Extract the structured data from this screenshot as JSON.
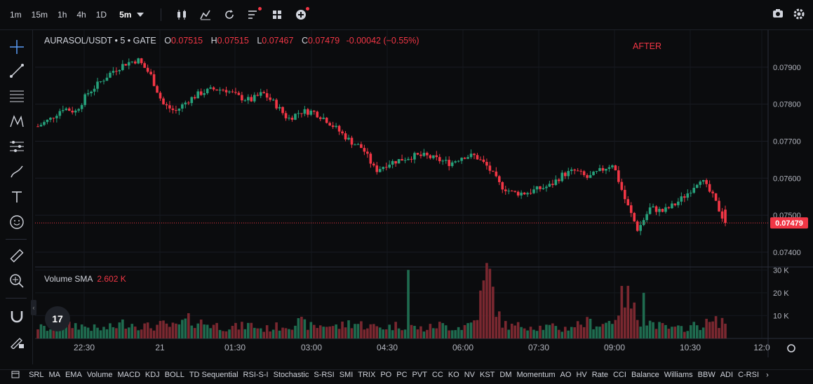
{
  "toolbar": {
    "timeframes": [
      "1m",
      "15m",
      "1h",
      "4h",
      "1D",
      "5m"
    ],
    "active_timeframe": "5m"
  },
  "legend": {
    "symbol": "AURASOL/USDT • 5 • GATE",
    "open_label": "O",
    "open": "0.07515",
    "high_label": "H",
    "high": "0.07515",
    "low_label": "L",
    "low": "0.07467",
    "close_label": "C",
    "close": "0.07479",
    "change": "-0.00042 (−0.55%)"
  },
  "annotation": "AFTER",
  "volume_legend": {
    "label": "Volume SMA",
    "value": "2.602 K"
  },
  "logo_text": "17",
  "bottom_indicators": [
    "SRL",
    "MA",
    "EMA",
    "Volume",
    "MACD",
    "KDJ",
    "BOLL",
    "TD Sequential",
    "RSI-S-I",
    "Stochastic",
    "S-RSI",
    "SMI",
    "TRIX",
    "PO",
    "PC",
    "PVT",
    "CC",
    "KO",
    "NV",
    "KST",
    "DM",
    "Momentum",
    "AO",
    "HV",
    "Rate",
    "CCI",
    "Balance",
    "Williams",
    "BBW",
    "ADI",
    "C-RSI"
  ],
  "colors": {
    "up": "#26a17b",
    "down": "#f23645",
    "up_vol": "#1f6b4f",
    "down_vol": "#7a2830",
    "last_price": "#f23645"
  },
  "chart_data": {
    "type": "candlestick",
    "x_ticks": [
      "22:30",
      "21",
      "01:30",
      "03:00",
      "04:30",
      "06:00",
      "07:30",
      "09:00",
      "10:30",
      "12:0"
    ],
    "price_ticks": [
      "0.07900",
      "0.07800",
      "0.07700",
      "0.07600",
      "0.07500",
      "0.07400"
    ],
    "price_range": [
      0.0736,
      0.08
    ],
    "volume_ticks": [
      "30 K",
      "20 K",
      "10 K"
    ],
    "volume_range": [
      0,
      31000
    ],
    "last_price": "0.07479",
    "close_path": [
      0.0774,
      0.0776,
      0.0779,
      0.0778,
      0.0783,
      0.0786,
      0.0789,
      0.0791,
      0.0792,
      0.0788,
      0.078,
      0.0778,
      0.0781,
      0.0783,
      0.0784,
      0.0784,
      0.0782,
      0.0781,
      0.0783,
      0.078,
      0.0776,
      0.0778,
      0.0778,
      0.0776,
      0.0773,
      0.077,
      0.0768,
      0.0762,
      0.0764,
      0.0765,
      0.0766,
      0.0766,
      0.0765,
      0.0764,
      0.0766,
      0.0766,
      0.0763,
      0.0758,
      0.0756,
      0.0756,
      0.0757,
      0.0758,
      0.0761,
      0.0762,
      0.076,
      0.0762,
      0.0764,
      0.0754,
      0.0746,
      0.0752,
      0.0751,
      0.0753,
      0.0756,
      0.076,
      0.0755,
      0.07479
    ],
    "volume_shape": [
      5,
      4,
      5,
      6,
      5,
      4,
      5,
      7,
      6,
      5,
      6,
      5,
      8,
      7,
      6,
      5,
      5,
      6,
      4,
      5,
      6,
      7,
      5,
      6,
      5,
      7,
      6,
      5,
      5,
      6,
      5,
      4,
      6,
      5,
      5,
      8,
      30,
      7,
      5,
      6,
      5,
      5,
      4,
      6,
      7,
      6,
      8,
      20,
      9,
      7,
      5,
      4,
      5,
      6,
      7,
      8
    ]
  }
}
